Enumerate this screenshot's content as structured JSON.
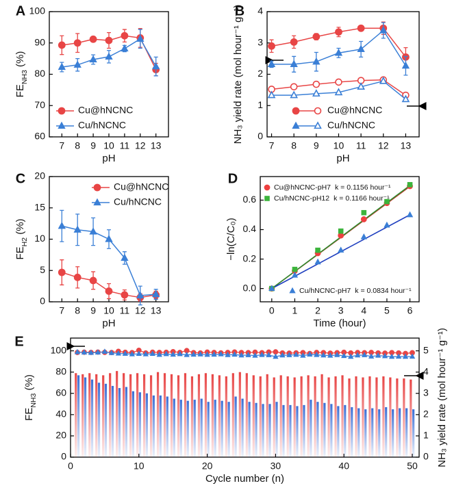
{
  "chart_data": [
    {
      "type": "line",
      "label": "A",
      "xlabel": "pH",
      "ylabel": [
        {
          "text": "FE"
        },
        {
          "text": "NH3",
          "shift": "sub"
        },
        {
          "text": " (%)"
        }
      ],
      "x": [
        7,
        8,
        9,
        10,
        11,
        12,
        13
      ],
      "xlim": [
        6.2,
        13.8
      ],
      "xticks": [
        7,
        8,
        9,
        10,
        11,
        12,
        13
      ],
      "ylim": [
        60,
        100
      ],
      "yticks": [
        60,
        70,
        80,
        90,
        100
      ],
      "legend": "lower left",
      "series": [
        {
          "name": "Cu@hNCNC",
          "color": "#e84545",
          "marker": "circle",
          "values": [
            89.3,
            90,
            91.2,
            90.8,
            92.3,
            91.6,
            81.5
          ],
          "errors": [
            3,
            3,
            0.5,
            2.5,
            2,
            3,
            2
          ]
        },
        {
          "name": "Cu/hNCNC",
          "color": "#3a7fd6",
          "marker": "triangle",
          "values": [
            82.3,
            83,
            84.7,
            85.6,
            88.2,
            91.3,
            82.5
          ],
          "errors": [
            1.5,
            2,
            1.5,
            2,
            1,
            3,
            3
          ]
        }
      ]
    },
    {
      "type": "line",
      "label": "B",
      "xlabel": "pH",
      "ylabel": "NH₃ yield rate (mol hour⁻¹ g⁻¹)",
      "x": [
        7,
        8,
        9,
        10,
        11,
        12,
        13
      ],
      "xlim": [
        6.8,
        13.6
      ],
      "xticks": [
        7,
        8,
        9,
        10,
        11,
        12,
        13
      ],
      "ylim": [
        0,
        4
      ],
      "yticks": [
        0,
        1,
        2,
        3,
        4
      ],
      "legend": "lower right",
      "series": [
        {
          "name": "Cu@hNCNC",
          "color": "#e84545",
          "marker": "circle",
          "values": [
            2.9,
            3.03,
            3.2,
            3.35,
            3.47,
            3.47,
            2.55
          ],
          "errors": [
            0.2,
            0.2,
            0.1,
            0.15,
            0.05,
            0.2,
            0.3
          ],
          "hollow_values": [
            1.52,
            1.6,
            1.68,
            1.75,
            1.8,
            1.82,
            1.33
          ]
        },
        {
          "name": "Cu/hNCNC",
          "color": "#3a7fd6",
          "marker": "triangle",
          "values": [
            2.32,
            2.32,
            2.4,
            2.68,
            2.8,
            3.4,
            2.27
          ],
          "errors": [
            0.1,
            0.25,
            0.3,
            0.15,
            0.25,
            0.25,
            0.3
          ],
          "hollow_values": [
            1.33,
            1.33,
            1.38,
            1.42,
            1.6,
            1.78,
            1.2
          ]
        }
      ]
    },
    {
      "type": "line",
      "label": "C",
      "xlabel": "pH",
      "ylabel": [
        {
          "text": "FE"
        },
        {
          "text": "H2",
          "shift": "sub"
        },
        {
          "text": " (%)"
        }
      ],
      "x": [
        7,
        8,
        9,
        10,
        11,
        12,
        13
      ],
      "xlim": [
        6.2,
        13.8
      ],
      "xticks": [
        7,
        8,
        9,
        10,
        11,
        12,
        13
      ],
      "ylim": [
        0,
        20
      ],
      "yticks": [
        0,
        5,
        10,
        15,
        20
      ],
      "legend": "upper right",
      "series": [
        {
          "name": "Cu@hNCNC",
          "color": "#e84545",
          "marker": "circle",
          "values": [
            4.7,
            3.9,
            3.4,
            1.7,
            1.1,
            0.7,
            1.1
          ],
          "errors": [
            2,
            1.7,
            1.4,
            1.2,
            0.8,
            0.6,
            0.6
          ]
        },
        {
          "name": "Cu/hNCNC",
          "color": "#3a7fd6",
          "marker": "triangle",
          "values": [
            12.1,
            11.5,
            11.2,
            10,
            7,
            1,
            1.2
          ],
          "errors": [
            2.5,
            2.5,
            2.2,
            1.5,
            1,
            1.5,
            0.8
          ]
        }
      ]
    },
    {
      "type": "scatter",
      "label": "D",
      "xlabel": "Time (hour)",
      "ylabel": "−ln(C/C₀)",
      "x": [
        0,
        1,
        2,
        3,
        4,
        5,
        6
      ],
      "xlim": [
        -0.5,
        6.4
      ],
      "xticks": [
        0,
        1,
        2,
        3,
        4,
        5,
        6
      ],
      "ylim": [
        -0.09,
        0.76
      ],
      "yticks": [
        {
          "value": 0,
          "label": "0.0"
        },
        {
          "value": 0.2,
          "label": "0.2"
        },
        {
          "value": 0.4,
          "label": "0.4"
        },
        {
          "value": 0.6,
          "label": "0.6"
        }
      ],
      "legend": "upper left",
      "series": [
        {
          "name": "Cu@hNCNC-pH7",
          "k": 0.1156,
          "k_label": "k = 0.1156 hour⁻¹",
          "color": "#ee4040",
          "line_color": "#c0392b",
          "marker": "circle",
          "values": [
            0,
            0.12,
            0.24,
            0.36,
            0.47,
            0.58,
            0.695
          ]
        },
        {
          "name": "Cu/hNCNC-pH12",
          "k": 0.1166,
          "k_label": "k = 0.1166 hour⁻¹",
          "color": "#3cb43c",
          "line_color": "#2e8b2e",
          "marker": "square",
          "values": [
            0,
            0.13,
            0.26,
            0.39,
            0.515,
            0.59,
            0.705
          ]
        },
        {
          "name": "Cu/hNCNC-pH7",
          "k": 0.0834,
          "k_label": "k = 0.0834 hour⁻¹",
          "color": "#3a7fd6",
          "line_color": "#1f3fbf",
          "marker": "triangle",
          "legend": "lower right",
          "values": [
            0,
            0.09,
            0.18,
            0.26,
            0.35,
            0.43,
            0.5
          ]
        }
      ]
    },
    {
      "type": "combo",
      "label": "E",
      "xlabel": "Cycle number (n)",
      "ylabel": [
        {
          "text": "FE"
        },
        {
          "text": "NH3",
          "shift": "sub"
        },
        {
          "text": " (%)"
        }
      ],
      "y2label": "NH₃ yield rate (mol hour⁻¹ g⁻¹)",
      "x": [
        1,
        2,
        3,
        4,
        5,
        6,
        7,
        8,
        9,
        10,
        11,
        12,
        13,
        14,
        15,
        16,
        17,
        18,
        19,
        20,
        21,
        22,
        23,
        24,
        25,
        26,
        27,
        28,
        29,
        30,
        31,
        32,
        33,
        34,
        35,
        36,
        37,
        38,
        39,
        40,
        41,
        42,
        43,
        44,
        45,
        46,
        47,
        48,
        49,
        50
      ],
      "xlim": [
        0,
        51
      ],
      "xticks": [
        0,
        10,
        20,
        30,
        40,
        50
      ],
      "ylim": [
        0,
        112
      ],
      "yticks": [
        0,
        20,
        40,
        60,
        80,
        100
      ],
      "y2lim": [
        0,
        5.6
      ],
      "y2ticks": [
        0,
        1,
        2,
        3,
        4,
        5
      ],
      "series": [
        {
          "kind": "bar",
          "axis": "y2",
          "color": "#e84545",
          "values": [
            3.95,
            3.9,
            3.95,
            3.9,
            3.85,
            3.95,
            4.05,
            3.95,
            3.9,
            3.95,
            3.9,
            3.85,
            4.0,
            3.95,
            3.9,
            3.85,
            3.95,
            3.8,
            3.9,
            3.95,
            3.9,
            3.85,
            3.8,
            3.95,
            4.0,
            3.95,
            3.85,
            3.8,
            3.9,
            3.75,
            3.85,
            3.8,
            3.75,
            3.8,
            3.85,
            3.8,
            3.9,
            3.75,
            3.8,
            3.85,
            3.7,
            3.8,
            3.75,
            3.8,
            3.75,
            3.8,
            3.75,
            3.7,
            3.7,
            3.65
          ]
        },
        {
          "kind": "bar",
          "axis": "y2",
          "color": "#3a6fd6",
          "values": [
            3.85,
            3.75,
            3.65,
            3.5,
            3.45,
            3.35,
            3.25,
            3.3,
            3.1,
            3.05,
            3.0,
            2.9,
            2.9,
            2.85,
            2.75,
            2.7,
            2.65,
            2.7,
            2.75,
            2.6,
            2.7,
            2.65,
            2.6,
            2.85,
            2.75,
            2.6,
            2.55,
            2.5,
            2.5,
            2.6,
            2.45,
            2.45,
            2.4,
            2.45,
            2.7,
            2.6,
            2.55,
            2.5,
            2.4,
            2.45,
            2.35,
            2.3,
            2.25,
            2.3,
            2.25,
            2.35,
            2.25,
            2.3,
            2.3,
            2.25
          ]
        },
        {
          "kind": "line",
          "color": "#e84545",
          "marker": "circle",
          "values": [
            98.5,
            98.7,
            98.5,
            98.8,
            98.6,
            98.4,
            99.5,
            98.6,
            98.3,
            100.5,
            98,
            98.7,
            98.5,
            98.6,
            99.2,
            98.5,
            100.2,
            98.3,
            98,
            98.8,
            98.5,
            98.1,
            98.5,
            98.9,
            98.4,
            98.3,
            98.7,
            98.2,
            98.8,
            99,
            98,
            97.8,
            98.1,
            98.3,
            97.5,
            98.5,
            98.3,
            97.8,
            98.2,
            98.6,
            98,
            98.4,
            98.2,
            98.5,
            98,
            97.8,
            98.3,
            98,
            97.5,
            98.2
          ]
        },
        {
          "kind": "line",
          "color": "#3a7fd6",
          "marker": "triangle",
          "values": [
            98.8,
            98.5,
            98.2,
            98.5,
            99.2,
            98,
            97.5,
            97.3,
            96.8,
            97.2,
            96.8,
            97.2,
            96.3,
            97,
            96.5,
            97,
            96.2,
            96.5,
            96.7,
            96.3,
            96.5,
            96.8,
            96.1,
            96.5,
            95.8,
            96,
            95.5,
            96.2,
            96,
            94.5,
            95.8,
            96,
            96.3,
            95.5,
            96.6,
            96.2,
            95.8,
            95.5,
            96.1,
            95.2,
            94.5,
            95.8,
            96,
            94.7,
            95.5,
            95,
            94.5,
            94.6,
            94.5,
            94.6
          ]
        }
      ]
    }
  ]
}
